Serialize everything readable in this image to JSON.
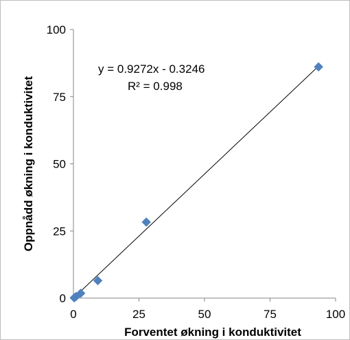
{
  "chart_data": {
    "type": "scatter",
    "xlabel": "Forventet økning i konduktivitet",
    "ylabel": "Oppnådd økning i konduktivitet",
    "xlim": [
      0,
      100
    ],
    "ylim": [
      0,
      100
    ],
    "x_ticks": [
      0,
      25,
      50,
      75,
      100
    ],
    "y_ticks": [
      0,
      25,
      50,
      75,
      100
    ],
    "x_tick_labels": [
      "0",
      "25",
      "50",
      "75",
      "100"
    ],
    "y_tick_labels": [
      "0",
      "25",
      "50",
      "75",
      "100"
    ],
    "grid": false,
    "legend": "none",
    "series": [
      {
        "marker": "diamond",
        "color": "#4f81bd",
        "points": [
          {
            "x": 0.3,
            "y": 0.1
          },
          {
            "x": 1.0,
            "y": 0.6
          },
          {
            "x": 2.8,
            "y": 1.8
          },
          {
            "x": 9.3,
            "y": 6.5
          },
          {
            "x": 27.8,
            "y": 28.3
          },
          {
            "x": 93.5,
            "y": 86.1
          }
        ]
      }
    ],
    "trendline": {
      "slope": 0.9272,
      "intercept": -0.3246,
      "x_range": [
        0,
        93.5
      ],
      "color": "#000000",
      "equation": "y = 0.9272x - 0.3246",
      "r2": "R² = 0.998"
    }
  }
}
